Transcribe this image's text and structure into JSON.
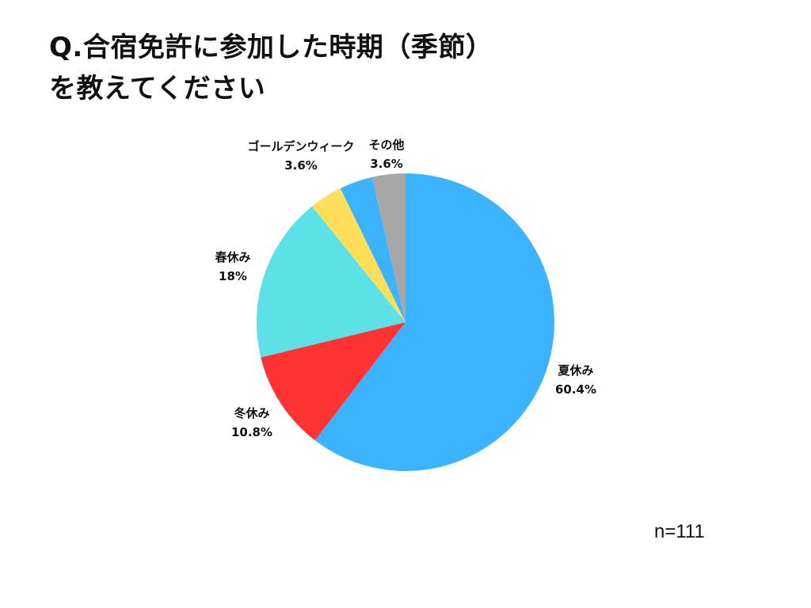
{
  "title_lines": [
    "Q.合宿免許に参加した時期（季節）",
    "を教えてください"
  ],
  "sample_size": "n=111",
  "chart_data": {
    "type": "pie",
    "start_angle_deg": 0,
    "direction": "clockwise",
    "slices": [
      {
        "label": "夏休み",
        "value": 60.4,
        "value_label": "60.4%",
        "color": "#3BB3FF"
      },
      {
        "label": "冬休み",
        "value": 10.8,
        "value_label": "10.8%",
        "color": "#FF3333"
      },
      {
        "label": "春休み",
        "value": 18,
        "value_label": "18%",
        "color": "#5CE1E6"
      },
      {
        "label": "ゴールデンウィーク",
        "value": 3.6,
        "value_label": "3.6%",
        "color": "#FFDE59"
      },
      {
        "label": "",
        "value": 3.6,
        "value_label": "",
        "color": "#3BB3FF"
      },
      {
        "label": "その他",
        "value": 3.6,
        "value_label": "3.6%",
        "color": "#A6A6A6"
      }
    ]
  }
}
